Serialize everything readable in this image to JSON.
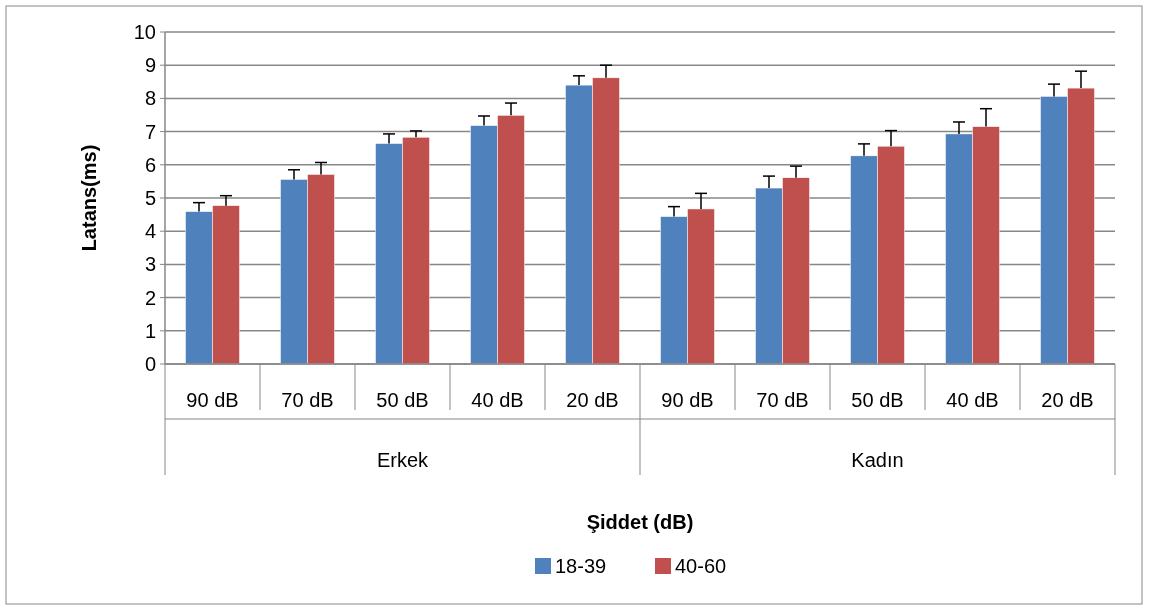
{
  "chart_data": {
    "type": "bar",
    "xlabel": "Şiddet (dB)",
    "ylabel": "Latans(ms)",
    "categories": [
      "90 dB",
      "70 dB",
      "50 dB",
      "40 dB",
      "20 dB",
      "90 dB",
      "70 dB",
      "50 dB",
      "40 dB",
      "20 dB"
    ],
    "annotations": [
      "Erkek",
      "Kadın"
    ],
    "series": [
      {
        "name": "18-39",
        "color": "#4f81bd",
        "values": [
          4.59,
          5.56,
          6.64,
          7.18,
          8.4,
          4.44,
          5.3,
          6.27,
          6.93,
          8.06
        ],
        "errors": [
          [
            4.59,
            4.86
          ],
          [
            5.56,
            5.85
          ],
          [
            6.64,
            6.93
          ],
          [
            7.18,
            7.47
          ],
          [
            8.4,
            8.68
          ],
          [
            4.44,
            4.74
          ],
          [
            5.3,
            5.66
          ],
          [
            6.27,
            6.63
          ],
          [
            6.93,
            7.29
          ],
          [
            8.06,
            8.43
          ]
        ]
      },
      {
        "name": "40-60",
        "color": "#c0504d",
        "values": [
          4.77,
          5.71,
          6.83,
          7.49,
          8.62,
          4.67,
          5.61,
          6.56,
          7.15,
          8.31
        ],
        "errors": [
          [
            4.77,
            5.07
          ],
          [
            5.71,
            6.07
          ],
          [
            6.83,
            7.02
          ],
          [
            7.49,
            7.86
          ],
          [
            8.62,
            9.0
          ],
          [
            4.67,
            5.14
          ],
          [
            5.61,
            5.96
          ],
          [
            6.56,
            7.03
          ],
          [
            7.15,
            7.69
          ],
          [
            8.31,
            8.82
          ]
        ]
      }
    ],
    "ylim": [
      0,
      10
    ],
    "yticks": [
      0,
      1,
      2,
      3,
      4,
      5,
      6,
      7,
      8,
      9,
      10
    ],
    "grid": "y",
    "legend": "bottom"
  }
}
